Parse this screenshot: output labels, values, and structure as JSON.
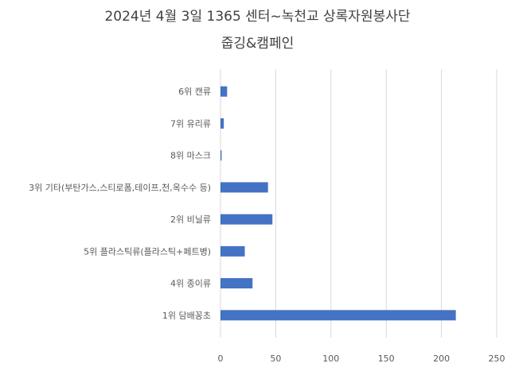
{
  "chart_data": {
    "type": "bar",
    "orientation": "horizontal",
    "title": [
      "2024년 4월 3일 1365 센터~녹천교 상록자원봉사단",
      "줍깅&캠페인"
    ],
    "categories": [
      "6위 캔류",
      "7위 유리류",
      "8위 마스크",
      "3위 기타(부탄가스,스티로폼,테이프,천,옥수수 등)",
      "2위 비닐류",
      "5위 플라스틱류(플라스틱+페트병)",
      "4위 종이류",
      "1위 담배꽁초"
    ],
    "values": [
      6,
      3,
      1,
      43,
      47,
      22,
      29,
      213
    ],
    "xlim": [
      0,
      250
    ],
    "x_ticks": [
      "0",
      "50",
      "100",
      "150",
      "200",
      "250"
    ],
    "x_tick_values": [
      0,
      50,
      100,
      150,
      200,
      250
    ],
    "grid": true,
    "legend": "none",
    "bar_color": "#4472c4",
    "grid_color": "#d9d9d9"
  }
}
